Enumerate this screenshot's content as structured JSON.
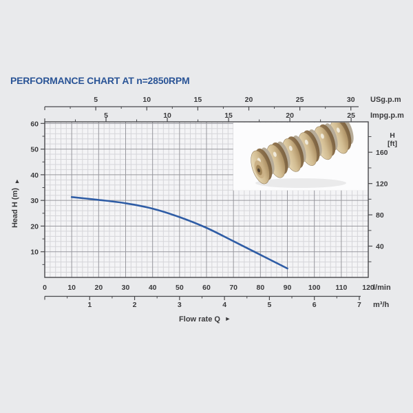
{
  "title": "PERFORMANCE CHART AT n=2850RPM",
  "colors": {
    "page_background": "#e9eaec",
    "title_blue": "#2a5496",
    "curve_blue": "#2e5ca5",
    "axis_line": "#48484b",
    "label_text": "#3a3a3c",
    "grid_minor": "#d5d5d9",
    "grid_major": "#97979d",
    "plot_background": "#f4f4f6",
    "inset_background": "#fcfcfd"
  },
  "chart_data": {
    "type": "line",
    "title": "PERFORMANCE CHART AT n=2850RPM",
    "xlabel": "Flow rate Q",
    "x_axis_primary": {
      "unit": "l/min",
      "min": 0,
      "max": 120,
      "ticks": [
        0,
        10,
        20,
        30,
        40,
        50,
        60,
        70,
        80,
        90,
        100,
        110,
        120
      ]
    },
    "x_axis_m3h": {
      "unit": "m³/h",
      "ticks": [
        1,
        2,
        3,
        4,
        5,
        6,
        7
      ],
      "minor_step": 0.5,
      "lmin_per_unit": 16.667
    },
    "x_axis_usgpm": {
      "unit": "USg.p.m",
      "ticks": [
        5,
        10,
        15,
        20,
        25,
        30
      ],
      "minor_step": 2.5,
      "lmin_per_unit": 3.785
    },
    "x_axis_impgpm": {
      "unit": "Impg.p.m",
      "ticks": [
        5,
        10,
        15,
        20,
        25
      ],
      "minor_step": 2.5,
      "lmin_per_unit": 4.546
    },
    "y_axis_left": {
      "label": "Head H (m)",
      "min": 0,
      "max": 60,
      "ticks": [
        10,
        20,
        30,
        40,
        50,
        60
      ],
      "minor_step": 5
    },
    "y_axis_right": {
      "label_line1": "H",
      "label_line2": "[ft]",
      "ticks": [
        40,
        80,
        120,
        160
      ],
      "minor_step": 20,
      "max_minor": 180,
      "m_per_ft": 0.3048
    },
    "grid": {
      "minor_step_x_lmin": 2,
      "minor_step_y_m": 2,
      "major_step_x_lmin": 10,
      "major_step_y_m": 10
    },
    "legend": "none",
    "series": [
      {
        "name": "head-flow-curve",
        "color": "#2e5ca5",
        "points_lmin_vs_m": [
          [
            10,
            31.3
          ],
          [
            20,
            30.2
          ],
          [
            30,
            28.9
          ],
          [
            40,
            26.8
          ],
          [
            50,
            23.5
          ],
          [
            60,
            19.3
          ],
          [
            70,
            14.1
          ],
          [
            80,
            8.8
          ],
          [
            90,
            3.5
          ]
        ]
      }
    ]
  },
  "labels": {
    "flow_rate": "Flow rate Q",
    "arrow_right": "►",
    "arrow_up": "▲",
    "unit_lmin": "l/min",
    "unit_m3h": "m³/h",
    "unit_usgpm": "USg.p.m",
    "unit_impgpm": "Impg.p.m",
    "head_left": "Head H (m)",
    "head_right_1": "H",
    "head_right_2": "[ft]"
  },
  "inset": {
    "description": "photo of a stack of six pump impellers on white background",
    "impeller_count": 6
  }
}
